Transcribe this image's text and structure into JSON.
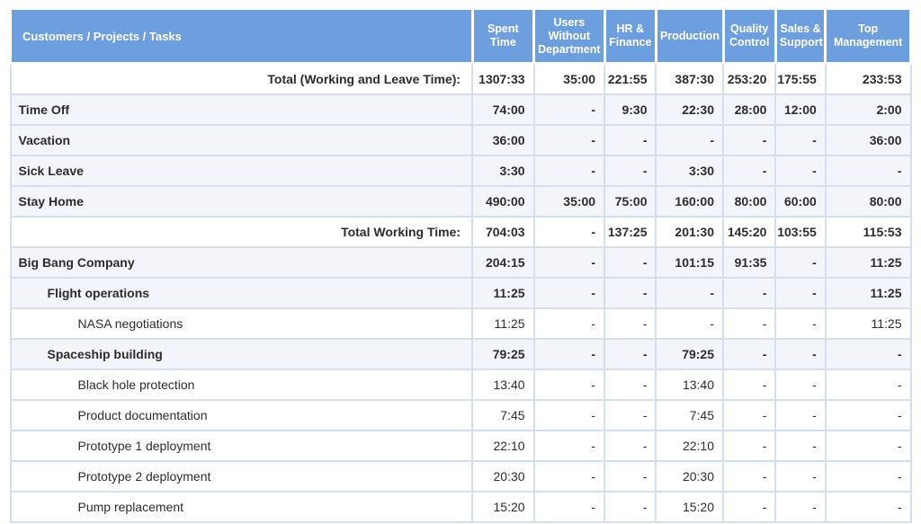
{
  "report_table": {
    "header": {
      "tasks_column": "Customers / Projects / Tasks",
      "columns": [
        "Spent Time",
        "Users Without Department",
        "HR & Finance",
        "Production",
        "Quality Control",
        "Sales & Support",
        "Top Management"
      ]
    },
    "rows": [
      {
        "label": "Total (Working and Leave Time):",
        "indent": 0,
        "bold": true,
        "shaded": false,
        "align": "right",
        "values": [
          "1307:33",
          "35:00",
          "221:55",
          "387:30",
          "253:20",
          "175:55",
          "233:53"
        ]
      },
      {
        "label": "Time Off",
        "indent": 0,
        "bold": true,
        "shaded": true,
        "align": "left",
        "values": [
          "74:00",
          "-",
          "9:30",
          "22:30",
          "28:00",
          "12:00",
          "2:00"
        ]
      },
      {
        "label": "Vacation",
        "indent": 0,
        "bold": true,
        "shaded": true,
        "align": "left",
        "values": [
          "36:00",
          "-",
          "-",
          "-",
          "-",
          "-",
          "36:00"
        ]
      },
      {
        "label": "Sick Leave",
        "indent": 0,
        "bold": true,
        "shaded": true,
        "align": "left",
        "values": [
          "3:30",
          "-",
          "-",
          "3:30",
          "-",
          "-",
          "-"
        ]
      },
      {
        "label": "Stay Home",
        "indent": 0,
        "bold": true,
        "shaded": true,
        "align": "left",
        "values": [
          "490:00",
          "35:00",
          "75:00",
          "160:00",
          "80:00",
          "60:00",
          "80:00"
        ]
      },
      {
        "label": "Total Working Time:",
        "indent": 0,
        "bold": true,
        "shaded": false,
        "align": "right",
        "values": [
          "704:03",
          "-",
          "137:25",
          "201:30",
          "145:20",
          "103:55",
          "115:53"
        ]
      },
      {
        "label": "Big Bang Company",
        "indent": 0,
        "bold": true,
        "shaded": true,
        "align": "left",
        "values": [
          "204:15",
          "-",
          "-",
          "101:15",
          "91:35",
          "-",
          "11:25"
        ]
      },
      {
        "label": "Flight operations",
        "indent": 1,
        "bold": true,
        "shaded": true,
        "align": "left",
        "values": [
          "11:25",
          "-",
          "-",
          "-",
          "-",
          "-",
          "11:25"
        ]
      },
      {
        "label": "NASA negotiations",
        "indent": 2,
        "bold": false,
        "shaded": false,
        "align": "left",
        "values": [
          "11:25",
          "-",
          "-",
          "-",
          "-",
          "-",
          "11:25"
        ]
      },
      {
        "label": "Spaceship building",
        "indent": 1,
        "bold": true,
        "shaded": true,
        "align": "left",
        "values": [
          "79:25",
          "-",
          "-",
          "79:25",
          "-",
          "-",
          "-"
        ]
      },
      {
        "label": "Black hole protection",
        "indent": 2,
        "bold": false,
        "shaded": false,
        "align": "left",
        "values": [
          "13:40",
          "-",
          "-",
          "13:40",
          "-",
          "-",
          "-"
        ]
      },
      {
        "label": "Product documentation",
        "indent": 2,
        "bold": false,
        "shaded": false,
        "align": "left",
        "values": [
          "7:45",
          "-",
          "-",
          "7:45",
          "-",
          "-",
          "-"
        ]
      },
      {
        "label": "Prototype 1 deployment",
        "indent": 2,
        "bold": false,
        "shaded": false,
        "align": "left",
        "values": [
          "22:10",
          "-",
          "-",
          "22:10",
          "-",
          "-",
          "-"
        ]
      },
      {
        "label": "Prototype 2 deployment",
        "indent": 2,
        "bold": false,
        "shaded": false,
        "align": "left",
        "values": [
          "20:30",
          "-",
          "-",
          "20:30",
          "-",
          "-",
          "-"
        ]
      },
      {
        "label": "Pump replacement",
        "indent": 2,
        "bold": false,
        "shaded": false,
        "align": "left",
        "values": [
          "15:20",
          "-",
          "-",
          "15:20",
          "-",
          "-",
          "-"
        ]
      }
    ],
    "colors": {
      "header_bg": "#6d9edd",
      "header_text": "#ffffff",
      "row_tint": "#f3f5fa",
      "border": "#d6ddeb",
      "text": "#2c2c2c"
    }
  }
}
